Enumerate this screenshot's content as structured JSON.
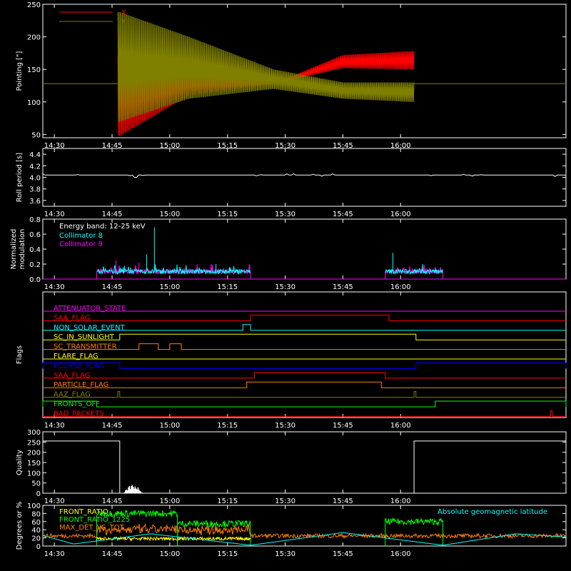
{
  "chart_data": [
    {
      "type": "line",
      "ylabel": "Pointing [\"]",
      "ylim": [
        45,
        250
      ],
      "yticks": [
        50,
        100,
        150,
        200,
        250
      ],
      "xticks": [
        "14:30",
        "14:45",
        "15:00",
        "15:15",
        "15:30",
        "15:45",
        "16:00"
      ],
      "xlim_min": [
        -3,
        133
      ],
      "legend": [
        {
          "name": "X",
          "color": "#ff0000"
        },
        {
          "name": "Y",
          "color": "#808000"
        }
      ],
      "baseline": 128,
      "active_window_min": [
        16.5,
        93.5
      ],
      "series": [
        {
          "name": "X",
          "color": "#ff0000",
          "envelope_t": [
            17,
            35,
            57,
            75,
            93
          ],
          "upper": [
            170,
            145,
            128,
            172,
            178
          ],
          "lower": [
            48,
            110,
            128,
            152,
            150
          ]
        },
        {
          "name": "Y",
          "color": "#808000",
          "envelope_t": [
            17,
            35,
            57,
            75,
            93
          ],
          "upper": [
            238,
            200,
            150,
            130,
            130
          ],
          "lower": [
            70,
            105,
            120,
            105,
            100
          ]
        }
      ]
    },
    {
      "type": "line",
      "ylabel": "Roll period [s]",
      "ylim": [
        3.5,
        4.5
      ],
      "yticks": [
        "3.6",
        "3.8",
        "4.0",
        "4.2",
        "4.4"
      ],
      "xticks": [
        "14:30",
        "14:45",
        "15:00",
        "15:15",
        "15:30",
        "15:45",
        "16:00"
      ],
      "xlim_min": [
        -3,
        133
      ],
      "series": [
        {
          "name": "",
          "color": "#ffffff",
          "level": 4.04
        }
      ]
    },
    {
      "type": "line",
      "ylabel": [
        "Normalized",
        "modulation"
      ],
      "ylim": [
        0,
        0.8
      ],
      "yticks": [
        "0.0",
        "0.2",
        "0.4",
        "0.6",
        "0.8"
      ],
      "xticks": [
        "14:30",
        "14:45",
        "15:00",
        "15:15",
        "15:30",
        "15:45",
        "16:00"
      ],
      "xlim_min": [
        -3,
        133
      ],
      "annotation": "Energy band: 12-25 keV",
      "legend": [
        {
          "name": "Collimator 8",
          "color": "#00ffff"
        },
        {
          "name": "Collimator 9",
          "color": "#ff00ff"
        }
      ],
      "segments_min": [
        [
          11,
          51
        ],
        [
          86,
          101
        ]
      ],
      "typical": 0.1,
      "spikes": [
        {
          "t": 26,
          "v": 0.69,
          "c": "#00ffff"
        },
        {
          "t": 24,
          "v": 0.33,
          "c": "#00ffff"
        },
        {
          "t": 16,
          "v": 0.25,
          "c": "#ff00ff"
        },
        {
          "t": 88,
          "v": 0.35,
          "c": "#00ffff"
        },
        {
          "t": 42,
          "v": 0.2,
          "c": "#00ffff"
        },
        {
          "t": 22,
          "v": 0.22,
          "c": "#ff00ff"
        }
      ]
    },
    {
      "type": "line",
      "ylabel": "Flags",
      "xticks": [
        "14:30",
        "14:45",
        "15:00",
        "15:15",
        "15:30",
        "15:45",
        "16:00"
      ],
      "xlim_min": [
        -3,
        133
      ],
      "flags": [
        {
          "name": "ATTENUATOR_STATE",
          "color": "#ff00ff",
          "on": []
        },
        {
          "name": "SAA_FLAG",
          "color": "#ff0000",
          "on": [
            [
              51,
              87
            ]
          ]
        },
        {
          "name": "NON_SOLAR_EVENT",
          "color": "#00ffff",
          "on": [
            [
              49,
              51
            ]
          ]
        },
        {
          "name": "SC_IN_SUNLIGHT",
          "color": "#ffff00",
          "on": [
            [
              17,
              94
            ]
          ]
        },
        {
          "name": "SC_TRANSMITTER",
          "color": "#ff8000",
          "on": [
            [
              22,
              27
            ],
            [
              30,
              33
            ]
          ]
        },
        {
          "name": "FLARE_FLAG",
          "color": "#ffff00",
          "on": []
        },
        {
          "name": "ECLIPSE_FLAG",
          "color": "#0000ff",
          "on": [
            [
              -3,
              17
            ],
            [
              94,
              133
            ]
          ]
        },
        {
          "name": "SAA_FLAG",
          "color": "#ff0000",
          "on": [
            [
              52,
              86
            ]
          ]
        },
        {
          "name": "PARTICLE_FLAG",
          "color": "#ff8000",
          "on": [
            [
              50,
              85
            ]
          ]
        },
        {
          "name": "AAZ_FLAG",
          "color": "#808000",
          "on": [
            [
              16.5,
              17
            ],
            [
              93.5,
              94
            ]
          ]
        },
        {
          "name": "FRONTS_OFF",
          "color": "#00ff00",
          "on": [
            [
              -3,
              11
            ],
            [
              99,
              133
            ]
          ]
        },
        {
          "name": "BAD_PACKETS",
          "color": "#ff0000",
          "on": [
            [
              129,
              129.4
            ]
          ]
        }
      ]
    },
    {
      "type": "line",
      "ylabel": "Quality",
      "ylim": [
        0,
        300
      ],
      "yticks": [
        0,
        50,
        100,
        150,
        200,
        250,
        300
      ],
      "xticks": [
        "14:30",
        "14:45",
        "15:00",
        "15:15",
        "15:30",
        "15:45",
        "16:00"
      ],
      "xlim_min": [
        -3,
        133
      ],
      "series": [
        {
          "name": "",
          "color": "#ffffff",
          "t": [
            -3,
            17,
            17,
            93.5,
            93.5,
            133
          ],
          "v": [
            255,
            255,
            0,
            0,
            255,
            255
          ]
        }
      ]
    },
    {
      "type": "line",
      "ylabel": "Degrees or %",
      "ylim": [
        0,
        100
      ],
      "yticks": [
        0,
        20,
        40,
        60,
        80,
        100
      ],
      "xticks": [
        "14:30",
        "14:45",
        "15:00",
        "15:15",
        "15:30",
        "15:45",
        "16:00"
      ],
      "xlim_min": [
        -3,
        133
      ],
      "legend": [
        {
          "name": "FRONT_RATIO",
          "color": "#ffff00"
        },
        {
          "name": "FRONT_RATIO_1225",
          "color": "#00ff00"
        },
        {
          "name": "MAX_DET_VS_TOT",
          "color": "#ff8000"
        }
      ],
      "annotation": "Absolute geomagnetic latitude",
      "annotation_color": "#00ffff",
      "latitude": {
        "t": [
          -3,
          5,
          25,
          51,
          75,
          101,
          120,
          133
        ],
        "v": [
          26,
          5,
          30,
          2,
          33,
          2,
          30,
          22
        ]
      },
      "front_ratio_1225": [
        {
          "t0": 11,
          "t1": 32,
          "v": 80
        },
        {
          "t0": 32,
          "t1": 51,
          "v": 55
        },
        {
          "t0": 86,
          "t1": 101,
          "v": 60
        }
      ],
      "max_det_vs_tot": 25,
      "front_ratio": 18
    }
  ]
}
